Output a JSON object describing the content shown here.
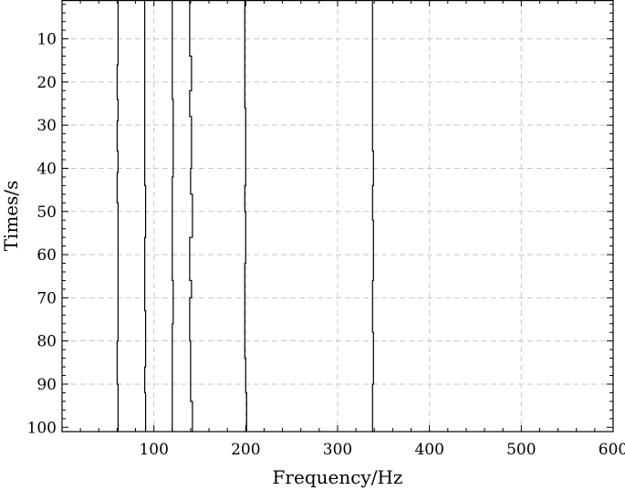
{
  "chart_data": {
    "type": "line",
    "xlabel": "Frequency/Hz",
    "ylabel": "Times/s",
    "xlim": [
      0,
      600
    ],
    "ylim": [
      1,
      101
    ],
    "y_inverted": true,
    "grid": true,
    "x_ticks": [
      100,
      200,
      300,
      400,
      500,
      600
    ],
    "y_ticks": [
      10,
      20,
      30,
      40,
      50,
      60,
      70,
      80,
      90,
      100
    ],
    "x_tick_labels": [
      "100",
      "200",
      "300",
      "400",
      "500",
      "600"
    ],
    "y_tick_labels": [
      "10",
      "20",
      "30",
      "40",
      "50",
      "60",
      "70",
      "80",
      "90",
      "100"
    ],
    "series": [
      {
        "points": [
          [
            61,
            1
          ],
          [
            61,
            12
          ],
          [
            60,
            16
          ],
          [
            61,
            24
          ],
          [
            60,
            29
          ],
          [
            61,
            36
          ],
          [
            60,
            41
          ],
          [
            61,
            48
          ],
          [
            61,
            60
          ],
          [
            61,
            72
          ],
          [
            60,
            80
          ],
          [
            61,
            90
          ],
          [
            61,
            101
          ]
        ]
      },
      {
        "points": [
          [
            90,
            1
          ],
          [
            90,
            42
          ],
          [
            91,
            44
          ],
          [
            90,
            56
          ],
          [
            90,
            66
          ],
          [
            91,
            73
          ],
          [
            90,
            86
          ],
          [
            91,
            92
          ],
          [
            91,
            101
          ]
        ]
      },
      {
        "points": [
          [
            120,
            1
          ],
          [
            120,
            14
          ],
          [
            121,
            24
          ],
          [
            120,
            42
          ],
          [
            120,
            54
          ],
          [
            121,
            66
          ],
          [
            120,
            76
          ],
          [
            120,
            92
          ],
          [
            120,
            101
          ]
        ]
      },
      {
        "points": [
          [
            139,
            1
          ],
          [
            139,
            10
          ],
          [
            141,
            14
          ],
          [
            139,
            22
          ],
          [
            141,
            28
          ],
          [
            140,
            40
          ],
          [
            142,
            46
          ],
          [
            139,
            56
          ],
          [
            141,
            66
          ],
          [
            139,
            70
          ],
          [
            140,
            80
          ],
          [
            142,
            94
          ],
          [
            141,
            101
          ]
        ]
      },
      {
        "points": [
          [
            199,
            1
          ],
          [
            199,
            12
          ],
          [
            200,
            26
          ],
          [
            200,
            34
          ],
          [
            199,
            44
          ],
          [
            200,
            50
          ],
          [
            199,
            62
          ],
          [
            199,
            72
          ],
          [
            200,
            84
          ],
          [
            201,
            92
          ],
          [
            200,
            101
          ]
        ]
      },
      {
        "points": [
          [
            338,
            1
          ],
          [
            338,
            18
          ],
          [
            339,
            36
          ],
          [
            338,
            44
          ],
          [
            339,
            52
          ],
          [
            338,
            66
          ],
          [
            339,
            78
          ],
          [
            338,
            90
          ],
          [
            339,
            101
          ]
        ]
      }
    ]
  }
}
